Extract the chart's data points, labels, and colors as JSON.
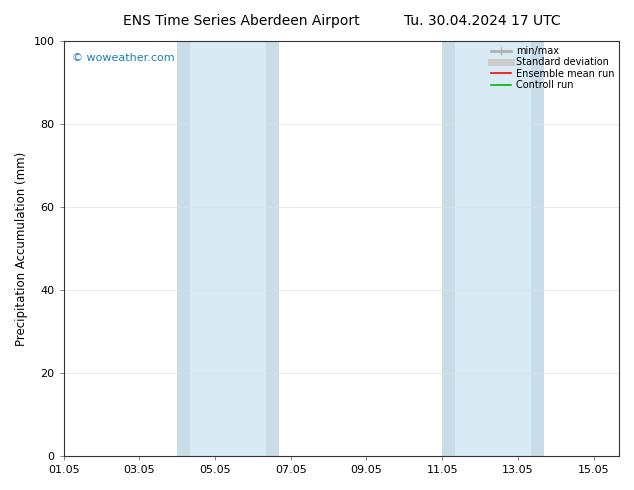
{
  "title": "ENS Time Series Aberdeen Airport",
  "title2": "Tu. 30.04.2024 17 UTC",
  "ylabel": "Precipitation Accumulation (mm)",
  "ylim": [
    0,
    100
  ],
  "xlim": [
    0,
    14.67
  ],
  "xtick_labels": [
    "01.05",
    "03.05",
    "05.05",
    "07.05",
    "09.05",
    "11.05",
    "13.05",
    "15.05"
  ],
  "xtick_positions": [
    0,
    2,
    4,
    6,
    8,
    10,
    12,
    14
  ],
  "ytick_labels": [
    "0",
    "20",
    "40",
    "60",
    "80",
    "100"
  ],
  "ytick_positions": [
    0,
    20,
    40,
    60,
    80,
    100
  ],
  "shaded_bands": [
    {
      "xmin": 3.0,
      "xmax": 3.35,
      "color": "#c8dde8"
    },
    {
      "xmin": 3.35,
      "xmax": 5.35,
      "color": "#d8eaf4"
    },
    {
      "xmin": 5.35,
      "xmax": 5.7,
      "color": "#c8dde8"
    },
    {
      "xmin": 10.0,
      "xmax": 10.35,
      "color": "#c8dde8"
    },
    {
      "xmin": 10.35,
      "xmax": 12.35,
      "color": "#d8eaf4"
    },
    {
      "xmin": 12.35,
      "xmax": 12.7,
      "color": "#c8dde8"
    }
  ],
  "watermark": "© woweather.com",
  "watermark_color": "#1a80c0",
  "legend_items": [
    {
      "label": "min/max",
      "color": "#b0b0b0",
      "lw": 2.0
    },
    {
      "label": "Standard deviation",
      "color": "#cccccc",
      "lw": 5.0
    },
    {
      "label": "Ensemble mean run",
      "color": "#ff0000",
      "lw": 1.2
    },
    {
      "label": "Controll run",
      "color": "#00bb00",
      "lw": 1.2
    }
  ],
  "bg_color": "#ffffff",
  "title_fontsize": 10,
  "axis_label_fontsize": 8.5,
  "tick_fontsize": 8,
  "legend_fontsize": 7,
  "watermark_fontsize": 8
}
